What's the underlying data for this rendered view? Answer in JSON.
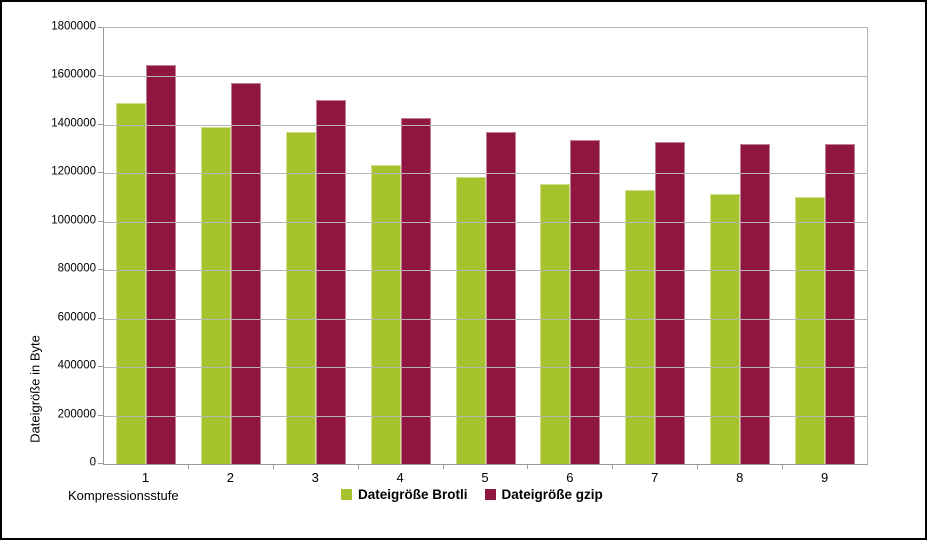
{
  "chart_data": {
    "type": "bar",
    "title": "",
    "categories": [
      "1",
      "2",
      "3",
      "4",
      "5",
      "6",
      "7",
      "8",
      "9"
    ],
    "series": [
      {
        "name": "Dateigröße Brotli",
        "color": "#A6C32E",
        "values": [
          1487000,
          1387000,
          1368000,
          1230000,
          1180000,
          1150000,
          1128000,
          1110000,
          1100000
        ]
      },
      {
        "name": "Dateigröße gzip",
        "color": "#8E1641",
        "values": [
          1645000,
          1568000,
          1500000,
          1423000,
          1365000,
          1333000,
          1325000,
          1319000,
          1316000
        ]
      }
    ],
    "xlabel": "Kompressionsstufe",
    "ylabel": "Dateigröße in Byte",
    "ylim": [
      0,
      1800000
    ],
    "ytick_step": 200000,
    "ytick_labels": [
      "0",
      "200000",
      "400000",
      "600000",
      "800000",
      "1000000",
      "1200000",
      "1400000",
      "1600000",
      "1800000"
    ],
    "grid": "horizontal-gridlines-on",
    "legend_position": "bottom-center"
  },
  "colors": {
    "background": "#ffffff",
    "frame_border": "#000000",
    "gridline": "#b5b5b5",
    "axis_line": "#9a9a9a",
    "text": "#000000"
  }
}
